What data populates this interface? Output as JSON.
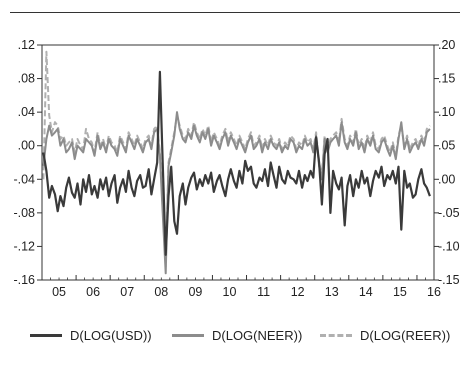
{
  "chart_data": {
    "type": "line",
    "title": "",
    "xlabel": "",
    "ylabel": "",
    "x_ticks": [
      "05",
      "06",
      "07",
      "08",
      "09",
      "10",
      "11",
      "12",
      "13",
      "14",
      "15",
      "16"
    ],
    "x_range": [
      2005.0,
      2016.5
    ],
    "ylim_left": [
      -0.16,
      0.12
    ],
    "ylim_right": [
      -0.15,
      0.2
    ],
    "y_ticks_left": [
      ".12",
      ".08",
      ".04",
      ".00",
      "-.04",
      "-.08",
      "-.12",
      "-.16"
    ],
    "y_ticks_right": [
      ".20",
      ".15",
      ".10",
      ".05",
      ".00",
      "-.05",
      "-.10",
      "-.15"
    ],
    "legend_position": "bottom",
    "series": [
      {
        "name": "D(LOG(USD))",
        "axis": "left",
        "color": "#3a3a3a",
        "dash": "solid",
        "x": [
          2005.04,
          2005.13,
          2005.21,
          2005.29,
          2005.38,
          2005.46,
          2005.54,
          2005.63,
          2005.71,
          2005.79,
          2005.88,
          2005.96,
          2006.04,
          2006.13,
          2006.21,
          2006.29,
          2006.38,
          2006.46,
          2006.54,
          2006.63,
          2006.71,
          2006.79,
          2006.88,
          2006.96,
          2007.04,
          2007.13,
          2007.21,
          2007.29,
          2007.38,
          2007.46,
          2007.54,
          2007.63,
          2007.71,
          2007.79,
          2007.88,
          2007.96,
          2008.04,
          2008.13,
          2008.21,
          2008.29,
          2008.38,
          2008.46,
          2008.54,
          2008.63,
          2008.71,
          2008.79,
          2008.88,
          2008.96,
          2009.04,
          2009.13,
          2009.21,
          2009.29,
          2009.38,
          2009.46,
          2009.54,
          2009.63,
          2009.71,
          2009.79,
          2009.88,
          2009.96,
          2010.04,
          2010.13,
          2010.21,
          2010.29,
          2010.38,
          2010.46,
          2010.54,
          2010.63,
          2010.71,
          2010.79,
          2010.88,
          2010.96,
          2011.04,
          2011.13,
          2011.21,
          2011.29,
          2011.38,
          2011.46,
          2011.54,
          2011.63,
          2011.71,
          2011.79,
          2011.88,
          2011.96,
          2012.04,
          2012.13,
          2012.21,
          2012.29,
          2012.38,
          2012.46,
          2012.54,
          2012.63,
          2012.71,
          2012.79,
          2012.88,
          2012.96,
          2013.04,
          2013.13,
          2013.21,
          2013.29,
          2013.38,
          2013.46,
          2013.54,
          2013.63,
          2013.71,
          2013.79,
          2013.88,
          2013.96,
          2014.04,
          2014.13,
          2014.21,
          2014.29,
          2014.38,
          2014.46,
          2014.54,
          2014.63,
          2014.71,
          2014.79,
          2014.88,
          2014.96,
          2015.04,
          2015.13,
          2015.21,
          2015.29,
          2015.38,
          2015.46,
          2015.54,
          2015.63,
          2015.71,
          2015.79,
          2015.88,
          2015.96,
          2016.04,
          2016.13,
          2016.21,
          2016.29,
          2016.38
        ],
        "values": [
          -0.008,
          -0.03,
          -0.062,
          -0.048,
          -0.058,
          -0.078,
          -0.06,
          -0.072,
          -0.05,
          -0.038,
          -0.056,
          -0.062,
          -0.045,
          -0.07,
          -0.04,
          -0.055,
          -0.035,
          -0.058,
          -0.048,
          -0.062,
          -0.04,
          -0.052,
          -0.038,
          -0.06,
          -0.045,
          -0.035,
          -0.068,
          -0.05,
          -0.04,
          -0.055,
          -0.03,
          -0.05,
          -0.06,
          -0.042,
          -0.035,
          -0.05,
          -0.048,
          -0.028,
          -0.058,
          -0.04,
          -0.02,
          0.088,
          -0.02,
          -0.13,
          -0.06,
          -0.025,
          -0.09,
          -0.105,
          -0.06,
          -0.045,
          -0.07,
          -0.05,
          -0.038,
          -0.032,
          -0.052,
          -0.04,
          -0.048,
          -0.035,
          -0.045,
          -0.032,
          -0.055,
          -0.042,
          -0.035,
          -0.048,
          -0.06,
          -0.04,
          -0.028,
          -0.042,
          -0.05,
          -0.03,
          -0.045,
          -0.018,
          -0.03,
          -0.025,
          -0.045,
          -0.05,
          -0.038,
          -0.042,
          -0.028,
          -0.048,
          -0.02,
          -0.035,
          -0.05,
          -0.025,
          -0.04,
          -0.045,
          -0.03,
          -0.038,
          -0.04,
          -0.045,
          -0.03,
          -0.05,
          -0.035,
          -0.042,
          -0.03,
          -0.038,
          0.01,
          -0.02,
          -0.07,
          -0.01,
          0.008,
          -0.08,
          -0.03,
          -0.045,
          -0.052,
          -0.038,
          -0.095,
          -0.048,
          -0.035,
          -0.06,
          -0.04,
          -0.05,
          -0.03,
          -0.045,
          -0.038,
          -0.06,
          -0.042,
          -0.03,
          -0.038,
          -0.025,
          -0.048,
          -0.035,
          -0.04,
          -0.03,
          -0.045,
          -0.025,
          -0.1,
          -0.03,
          -0.05,
          -0.045,
          -0.062,
          -0.058,
          -0.04,
          -0.028,
          -0.045,
          -0.05,
          -0.06
        ]
      },
      {
        "name": "D(LOG(NEER))",
        "axis": "right",
        "color": "#8c8c8c",
        "dash": "solid",
        "x": [
          2005.04,
          2005.13,
          2005.21,
          2005.29,
          2005.38,
          2005.46,
          2005.54,
          2005.63,
          2005.71,
          2005.79,
          2005.88,
          2005.96,
          2006.04,
          2006.13,
          2006.21,
          2006.29,
          2006.38,
          2006.46,
          2006.54,
          2006.63,
          2006.71,
          2006.79,
          2006.88,
          2006.96,
          2007.04,
          2007.13,
          2007.21,
          2007.29,
          2007.38,
          2007.46,
          2007.54,
          2007.63,
          2007.71,
          2007.79,
          2007.88,
          2007.96,
          2008.04,
          2008.13,
          2008.21,
          2008.29,
          2008.38,
          2008.46,
          2008.54,
          2008.63,
          2008.71,
          2008.79,
          2008.88,
          2008.96,
          2009.04,
          2009.13,
          2009.21,
          2009.29,
          2009.38,
          2009.46,
          2009.54,
          2009.63,
          2009.71,
          2009.79,
          2009.88,
          2009.96,
          2010.04,
          2010.13,
          2010.21,
          2010.29,
          2010.38,
          2010.46,
          2010.54,
          2010.63,
          2010.71,
          2010.79,
          2010.88,
          2010.96,
          2011.04,
          2011.13,
          2011.21,
          2011.29,
          2011.38,
          2011.46,
          2011.54,
          2011.63,
          2011.71,
          2011.79,
          2011.88,
          2011.96,
          2012.04,
          2012.13,
          2012.21,
          2012.29,
          2012.38,
          2012.46,
          2012.54,
          2012.63,
          2012.71,
          2012.79,
          2012.88,
          2012.96,
          2013.04,
          2013.13,
          2013.21,
          2013.29,
          2013.38,
          2013.46,
          2013.54,
          2013.63,
          2013.71,
          2013.79,
          2013.88,
          2013.96,
          2014.04,
          2014.13,
          2014.21,
          2014.29,
          2014.38,
          2014.46,
          2014.54,
          2014.63,
          2014.71,
          2014.79,
          2014.88,
          2014.96,
          2015.04,
          2015.13,
          2015.21,
          2015.29,
          2015.38,
          2015.46,
          2015.54,
          2015.63,
          2015.71,
          2015.79,
          2015.88,
          2015.96,
          2016.04,
          2016.13,
          2016.21,
          2016.29,
          2016.38
        ],
        "values": [
          0.02,
          0.06,
          0.08,
          0.065,
          0.07,
          0.075,
          0.05,
          0.06,
          0.04,
          0.045,
          0.055,
          0.03,
          0.05,
          0.045,
          0.04,
          0.06,
          0.055,
          0.05,
          0.035,
          0.065,
          0.045,
          0.055,
          0.04,
          0.06,
          0.05,
          0.045,
          0.035,
          0.06,
          0.05,
          0.04,
          0.065,
          0.055,
          0.045,
          0.06,
          0.05,
          0.04,
          0.055,
          0.06,
          0.045,
          0.07,
          0.075,
          0.035,
          -0.05,
          -0.14,
          0.02,
          0.04,
          0.065,
          0.1,
          0.075,
          0.06,
          0.055,
          0.07,
          0.06,
          0.08,
          0.065,
          0.055,
          0.07,
          0.06,
          0.075,
          0.05,
          0.065,
          0.055,
          0.045,
          0.06,
          0.07,
          0.05,
          0.065,
          0.055,
          0.045,
          0.06,
          0.05,
          0.04,
          0.055,
          0.065,
          0.045,
          0.05,
          0.06,
          0.04,
          0.055,
          0.045,
          0.06,
          0.05,
          0.045,
          0.055,
          0.04,
          0.05,
          0.045,
          0.06,
          0.055,
          0.04,
          0.05,
          0.045,
          0.06,
          0.05,
          0.055,
          0.04,
          0.065,
          0.02,
          0.0,
          0.06,
          0.04,
          0.055,
          0.06,
          0.065,
          0.05,
          0.085,
          0.055,
          0.045,
          0.06,
          0.05,
          0.07,
          0.045,
          0.055,
          0.04,
          0.06,
          0.05,
          0.065,
          0.045,
          0.04,
          0.055,
          0.06,
          0.045,
          0.035,
          0.05,
          0.03,
          0.06,
          0.085,
          0.045,
          0.06,
          0.04,
          0.05,
          0.055,
          0.045,
          0.06,
          0.05,
          0.07,
          0.075
        ]
      },
      {
        "name": "D(LOG(REER))",
        "axis": "right",
        "color": "#b0b0b0",
        "dash": "dashed",
        "x": [
          2005.04,
          2005.13,
          2005.21,
          2005.29,
          2005.38,
          2005.46,
          2005.54,
          2005.63,
          2005.71,
          2005.79,
          2005.88,
          2005.96,
          2006.04,
          2006.13,
          2006.21,
          2006.29,
          2006.38,
          2006.46,
          2006.54,
          2006.63,
          2006.71,
          2006.79,
          2006.88,
          2006.96,
          2007.04,
          2007.13,
          2007.21,
          2007.29,
          2007.38,
          2007.46,
          2007.54,
          2007.63,
          2007.71,
          2007.79,
          2007.88,
          2007.96,
          2008.04,
          2008.13,
          2008.21,
          2008.29,
          2008.38,
          2008.46,
          2008.54,
          2008.63,
          2008.71,
          2008.79,
          2008.88,
          2008.96,
          2009.04,
          2009.13,
          2009.21,
          2009.29,
          2009.38,
          2009.46,
          2009.54,
          2009.63,
          2009.71,
          2009.79,
          2009.88,
          2009.96,
          2010.04,
          2010.13,
          2010.21,
          2010.29,
          2010.38,
          2010.46,
          2010.54,
          2010.63,
          2010.71,
          2010.79,
          2010.88,
          2010.96,
          2011.04,
          2011.13,
          2011.21,
          2011.29,
          2011.38,
          2011.46,
          2011.54,
          2011.63,
          2011.71,
          2011.79,
          2011.88,
          2011.96,
          2012.04,
          2012.13,
          2012.21,
          2012.29,
          2012.38,
          2012.46,
          2012.54,
          2012.63,
          2012.71,
          2012.79,
          2012.88,
          2012.96,
          2013.04,
          2013.13,
          2013.21,
          2013.29,
          2013.38,
          2013.46,
          2013.54,
          2013.63,
          2013.71,
          2013.79,
          2013.88,
          2013.96,
          2014.04,
          2014.13,
          2014.21,
          2014.29,
          2014.38,
          2014.46,
          2014.54,
          2014.63,
          2014.71,
          2014.79,
          2014.88,
          2014.96,
          2015.04,
          2015.13,
          2015.21,
          2015.29,
          2015.38,
          2015.46,
          2015.54,
          2015.63,
          2015.71,
          2015.79,
          2015.88,
          2015.96,
          2016.04,
          2016.13,
          2016.21,
          2016.29,
          2016.38
        ],
        "values": [
          0.0,
          0.19,
          0.095,
          0.07,
          0.085,
          0.08,
          0.06,
          0.065,
          0.05,
          0.055,
          0.06,
          0.04,
          0.06,
          0.05,
          0.045,
          0.075,
          0.06,
          0.055,
          0.04,
          0.07,
          0.05,
          0.06,
          0.045,
          0.065,
          0.055,
          0.05,
          0.04,
          0.065,
          0.055,
          0.045,
          0.07,
          0.06,
          0.05,
          0.065,
          0.055,
          0.045,
          0.06,
          0.065,
          0.05,
          0.075,
          0.08,
          0.04,
          -0.04,
          -0.13,
          0.025,
          0.045,
          0.07,
          0.095,
          0.08,
          0.065,
          0.06,
          0.075,
          0.065,
          0.085,
          0.07,
          0.06,
          0.075,
          0.065,
          0.08,
          0.055,
          0.07,
          0.06,
          0.05,
          0.065,
          0.075,
          0.055,
          0.07,
          0.06,
          0.05,
          0.065,
          0.055,
          0.045,
          0.06,
          0.07,
          0.05,
          0.055,
          0.065,
          0.045,
          0.06,
          0.05,
          0.065,
          0.055,
          0.05,
          0.06,
          0.045,
          0.055,
          0.05,
          0.065,
          0.06,
          0.045,
          0.055,
          0.05,
          0.065,
          0.055,
          0.06,
          0.045,
          0.07,
          0.025,
          0.005,
          0.065,
          0.045,
          0.06,
          0.065,
          0.07,
          0.055,
          0.09,
          0.06,
          0.05,
          0.065,
          0.055,
          0.075,
          0.05,
          0.06,
          0.045,
          0.065,
          0.055,
          0.07,
          0.05,
          0.045,
          0.06,
          0.065,
          0.05,
          0.04,
          0.055,
          0.035,
          0.065,
          0.08,
          0.05,
          0.065,
          0.045,
          0.055,
          0.06,
          0.05,
          0.065,
          0.055,
          0.075,
          0.08
        ]
      }
    ]
  }
}
